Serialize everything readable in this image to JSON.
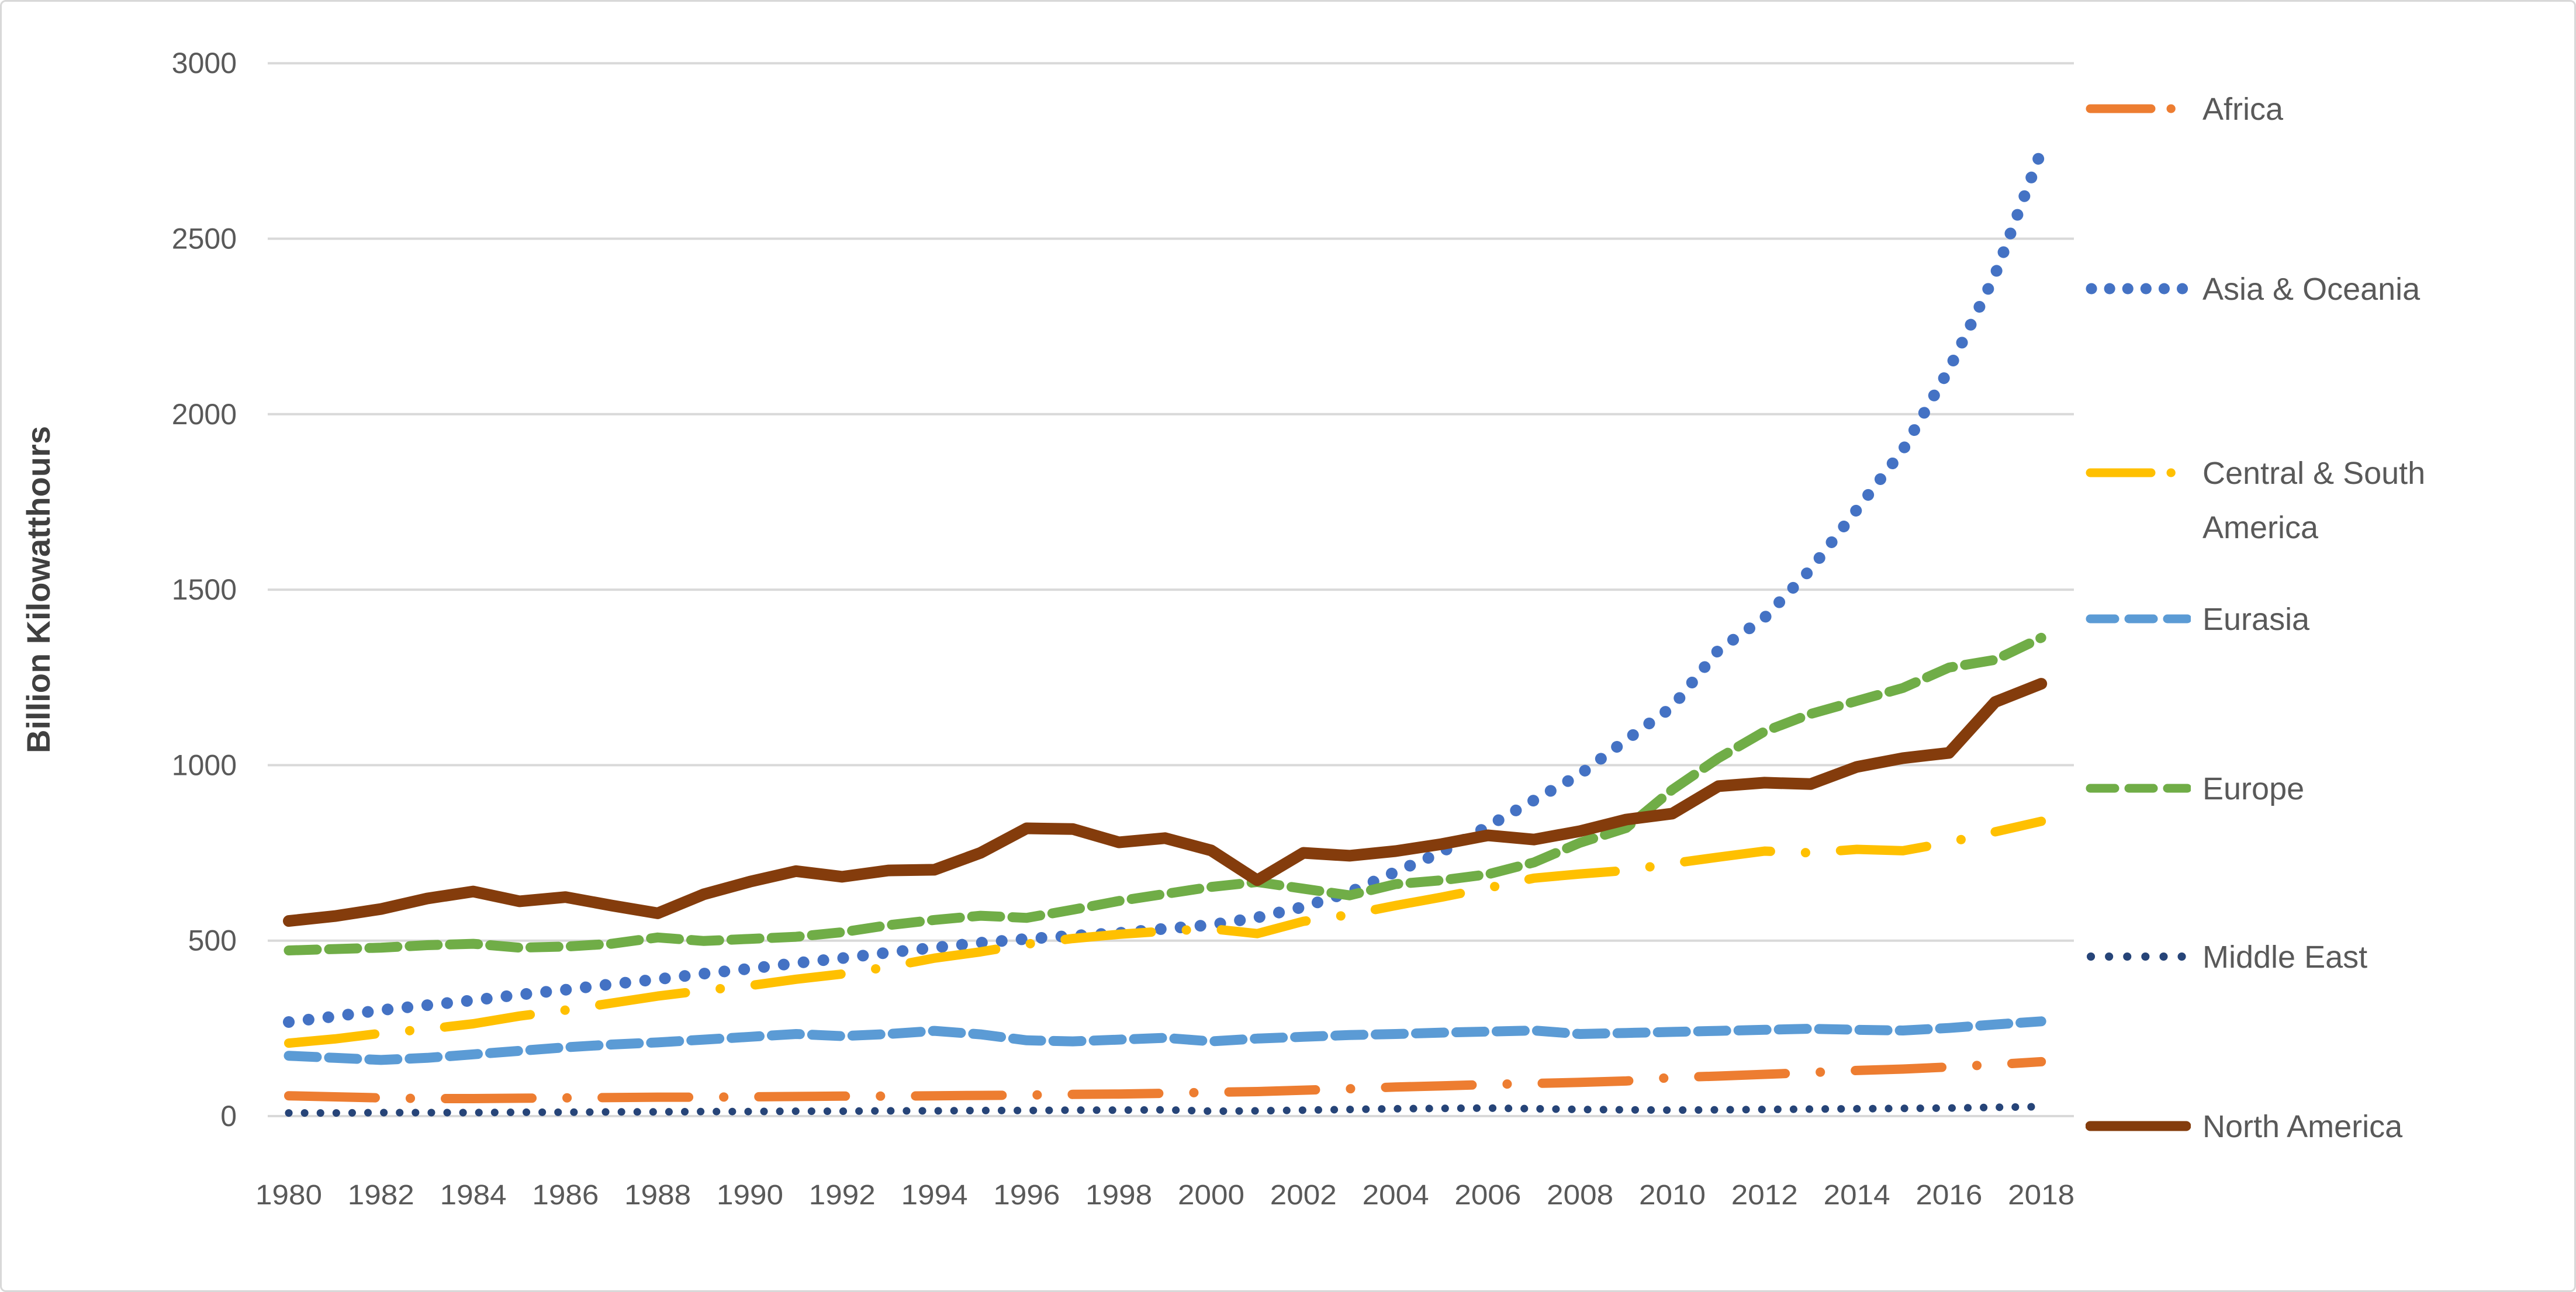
{
  "chart_data": {
    "type": "line",
    "title": "",
    "ylabel": "Billion Kilowatthours",
    "xlabel": "",
    "x": [
      1980,
      1981,
      1982,
      1983,
      1984,
      1985,
      1986,
      1987,
      1988,
      1989,
      1990,
      1991,
      1992,
      1993,
      1994,
      1995,
      1996,
      1997,
      1998,
      1999,
      2000,
      2001,
      2002,
      2003,
      2004,
      2005,
      2006,
      2007,
      2008,
      2009,
      2010,
      2011,
      2012,
      2013,
      2014,
      2015,
      2016,
      2017,
      2018
    ],
    "x_tick_labels": [
      "1980",
      "1982",
      "1984",
      "1986",
      "1988",
      "1990",
      "1992",
      "1994",
      "1996",
      "1998",
      "2000",
      "2002",
      "2004",
      "2006",
      "2008",
      "2010",
      "2012",
      "2014",
      "2016",
      "2018"
    ],
    "y_ticks": [
      0,
      500,
      1000,
      1500,
      2000,
      2500,
      3000
    ],
    "ylim": [
      0,
      3000
    ],
    "grid": "horizontal-only",
    "gridline_color": "#d9d9d9",
    "tick_label_color": "#595959",
    "legend_position": "right",
    "series": [
      {
        "name": "Africa",
        "color": "#ED7D31",
        "style": "long-dash-dot",
        "values": [
          58,
          55,
          52,
          50,
          50,
          51,
          52,
          53,
          54,
          54,
          55,
          56,
          57,
          57,
          58,
          59,
          60,
          62,
          63,
          65,
          68,
          70,
          74,
          78,
          83,
          86,
          90,
          93,
          96,
          100,
          110,
          114,
          119,
          124,
          130,
          134,
          140,
          147,
          155
        ]
      },
      {
        "name": "Asia & Oceania",
        "color": "#4472C4",
        "style": "dotted",
        "values": [
          268,
          284,
          302,
          316,
          330,
          346,
          360,
          376,
          390,
          406,
          420,
          436,
          450,
          466,
          480,
          494,
          505,
          514,
          522,
          534,
          545,
          566,
          596,
          638,
          696,
          752,
          826,
          900,
          974,
          1072,
          1166,
          1328,
          1420,
          1558,
          1728,
          1898,
          2128,
          2398,
          2750
        ]
      },
      {
        "name": "Central & South America",
        "color": "#FFC000",
        "style": "long-dash-dot",
        "values": [
          208,
          220,
          236,
          248,
          263,
          285,
          302,
          322,
          342,
          358,
          372,
          390,
          405,
          425,
          450,
          468,
          490,
          506,
          518,
          527,
          534,
          520,
          555,
          574,
          600,
          624,
          650,
          678,
          690,
          700,
          720,
          738,
          755,
          750,
          760,
          756,
          780,
          810,
          840
        ]
      },
      {
        "name": "Eurasia",
        "color": "#5B9BD5",
        "style": "dashed",
        "values": [
          172,
          166,
          160,
          166,
          176,
          186,
          196,
          204,
          210,
          218,
          226,
          234,
          228,
          234,
          243,
          233,
          216,
          213,
          218,
          223,
          213,
          221,
          226,
          231,
          234,
          238,
          241,
          244,
          234,
          237,
          240,
          243,
          246,
          249,
          246,
          244,
          251,
          261,
          270
        ]
      },
      {
        "name": "Europe",
        "color": "#70AD47",
        "style": "dashed",
        "values": [
          472,
          476,
          480,
          487,
          491,
          480,
          483,
          491,
          509,
          499,
          505,
          511,
          524,
          544,
          559,
          571,
          565,
          588,
          613,
          633,
          653,
          667,
          648,
          629,
          661,
          672,
          689,
          723,
          779,
          821,
          930,
          1020,
          1096,
          1146,
          1183,
          1220,
          1278,
          1300,
          1363
        ]
      },
      {
        "name": "Middle East",
        "color": "#264478",
        "style": "dotted-small",
        "values": [
          9,
          9,
          10,
          10,
          10,
          11,
          11,
          12,
          12,
          13,
          13,
          14,
          14,
          15,
          15,
          16,
          16,
          17,
          17,
          18,
          14,
          15,
          17,
          19,
          21,
          22,
          23,
          21,
          19,
          18,
          17,
          18,
          19,
          20,
          21,
          22,
          23,
          25,
          27
        ]
      },
      {
        "name": "North America",
        "color": "#843C0C",
        "style": "solid",
        "values": [
          556,
          570,
          590,
          620,
          640,
          612,
          624,
          600,
          578,
          632,
          668,
          698,
          682,
          700,
          702,
          750,
          820,
          818,
          780,
          792,
          757,
          672,
          750,
          742,
          755,
          775,
          800,
          788,
          812,
          845,
          862,
          940,
          950,
          946,
          995,
          1020,
          1035,
          1180,
          1232
        ]
      }
    ]
  }
}
